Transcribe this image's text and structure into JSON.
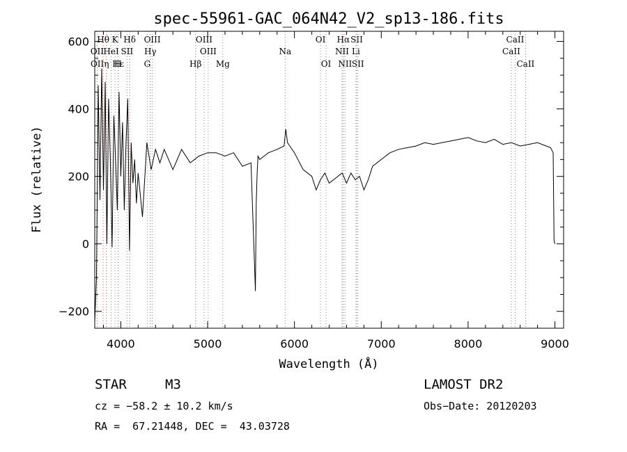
{
  "chart_data": {
    "type": "line",
    "title": "spec-55961-GAC_064N42_V2_sp13-186.fits",
    "xlabel": "Wavelength (Å)",
    "ylabel": "Flux (relative)",
    "xlim": [
      3700,
      9100
    ],
    "ylim": [
      -250,
      630
    ],
    "xticks": [
      4000,
      5000,
      6000,
      7000,
      8000,
      9000
    ],
    "xtick_labels": [
      "4000",
      "5000",
      "6000",
      "7000",
      "8000",
      "9000"
    ],
    "yticks": [
      -200,
      0,
      200,
      400,
      600
    ],
    "ytick_labels": [
      "−200",
      "0",
      "200",
      "400",
      "600"
    ],
    "grid": false,
    "series": [
      {
        "x": [
          3700,
          3720,
          3740,
          3760,
          3780,
          3800,
          3820,
          3840,
          3860,
          3880,
          3900,
          3920,
          3940,
          3960,
          3980,
          4000,
          4020,
          4040,
          4060,
          4080,
          4100,
          4120,
          4140,
          4160,
          4180,
          4200,
          4250,
          4300,
          4350,
          4400,
          4450,
          4500,
          4600,
          4700,
          4800,
          4900,
          5000,
          5100,
          5200,
          5300,
          5400,
          5500,
          5550,
          5560,
          5570,
          5580,
          5600,
          5700,
          5800,
          5880,
          5900,
          5920,
          6000,
          6100,
          6200,
          6250,
          6300,
          6350,
          6400,
          6500,
          6550,
          6600,
          6650,
          6700,
          6750,
          6800,
          6850,
          6900,
          7000,
          7100,
          7200,
          7300,
          7400,
          7500,
          7600,
          7700,
          7800,
          7900,
          8000,
          8100,
          8200,
          8300,
          8400,
          8500,
          8600,
          8700,
          8800,
          8900,
          8950,
          8980,
          8990,
          9000
        ],
        "y": [
          -230,
          -100,
          470,
          130,
          520,
          160,
          480,
          0,
          430,
          250,
          -10,
          380,
          250,
          100,
          450,
          200,
          360,
          100,
          300,
          430,
          -20,
          300,
          180,
          250,
          120,
          210,
          80,
          300,
          220,
          280,
          240,
          280,
          220,
          280,
          240,
          260,
          270,
          270,
          260,
          270,
          230,
          240,
          -140,
          120,
          210,
          260,
          250,
          270,
          280,
          290,
          340,
          300,
          270,
          220,
          200,
          160,
          190,
          210,
          180,
          200,
          210,
          180,
          210,
          190,
          200,
          160,
          190,
          230,
          250,
          270,
          280,
          285,
          290,
          300,
          295,
          300,
          305,
          310,
          315,
          305,
          300,
          310,
          295,
          300,
          290,
          295,
          300,
          290,
          285,
          270,
          10,
          0
        ]
      }
    ],
    "line_markers": [
      {
        "label": "Hθ",
        "x": 3797,
        "row": 0,
        "color": "red"
      },
      {
        "label": "K",
        "x": 3934,
        "row": 0,
        "color": "gray"
      },
      {
        "label": "Hδ",
        "x": 4102,
        "row": 0,
        "color": "red"
      },
      {
        "label": "OIII",
        "x": 4363,
        "row": 0,
        "color": "gray"
      },
      {
        "label": "OIII",
        "x": 4959,
        "row": 0,
        "color": "gray"
      },
      {
        "label": "OI",
        "x": 6300,
        "row": 0,
        "color": "gray"
      },
      {
        "label": "Hα",
        "x": 6563,
        "row": 0,
        "color": "red"
      },
      {
        "label": "SII",
        "x": 6717,
        "row": 0,
        "color": "gray"
      },
      {
        "label": "CaII",
        "x": 8542,
        "row": 0,
        "color": "gray"
      },
      {
        "label": "OII",
        "x": 3727,
        "row": 1,
        "color": "gray"
      },
      {
        "label": "HeI",
        "x": 3889,
        "row": 1,
        "color": "gray"
      },
      {
        "label": "SII",
        "x": 4072,
        "row": 1,
        "color": "gray"
      },
      {
        "label": "Hγ",
        "x": 4340,
        "row": 1,
        "color": "red"
      },
      {
        "label": "OIII",
        "x": 5007,
        "row": 1,
        "color": "gray"
      },
      {
        "label": "Na",
        "x": 5893,
        "row": 1,
        "color": "gray"
      },
      {
        "label": "NII",
        "x": 6548,
        "row": 1,
        "color": "gray"
      },
      {
        "label": "Li",
        "x": 6708,
        "row": 1,
        "color": "gray"
      },
      {
        "label": "CaII",
        "x": 8498,
        "row": 1,
        "color": "gray"
      },
      {
        "label": "OII",
        "x": 3729,
        "row": 2,
        "color": "gray"
      },
      {
        "label": "Hε",
        "x": 3970,
        "row": 2,
        "color": "red"
      },
      {
        "label": "η",
        "x": 3835,
        "row": 2,
        "color": "red"
      },
      {
        "label": "H",
        "x": 3968,
        "row": 2,
        "color": "gray"
      },
      {
        "label": "G",
        "x": 4305,
        "row": 2,
        "color": "gray"
      },
      {
        "label": "Hβ",
        "x": 4861,
        "row": 2,
        "color": "red"
      },
      {
        "label": "Mg",
        "x": 5175,
        "row": 2,
        "color": "gray"
      },
      {
        "label": "OI",
        "x": 6364,
        "row": 2,
        "color": "gray"
      },
      {
        "label": "NII",
        "x": 6583,
        "row": 2,
        "color": "gray"
      },
      {
        "label": "SII",
        "x": 6731,
        "row": 2,
        "color": "gray"
      },
      {
        "label": "CaII",
        "x": 8662,
        "row": 2,
        "color": "gray"
      }
    ]
  },
  "info": {
    "object_class": "STAR",
    "subclass": "M3",
    "survey": "LAMOST DR2",
    "cz": "cz = −58.2 ± 10.2 km/s",
    "obs_date": "Obs−Date: 20120203",
    "coords": "RA =  67.21448, DEC =  43.03728"
  }
}
